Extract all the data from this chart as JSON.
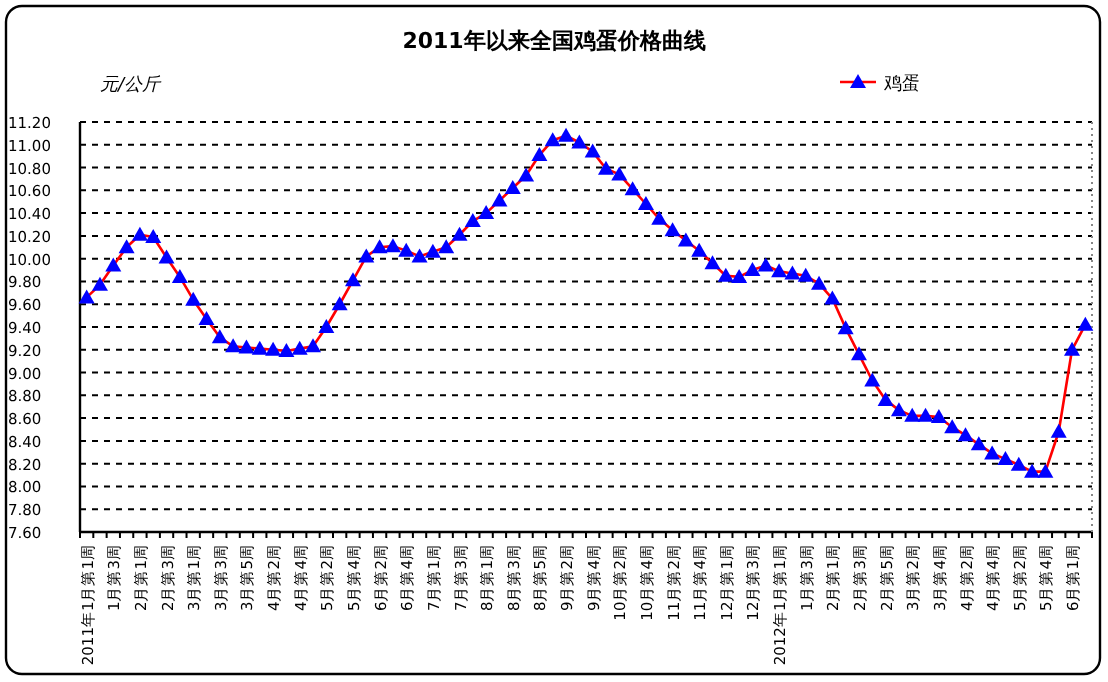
{
  "chart_data": {
    "type": "line",
    "title": "2011年以来全国鸡蛋价格曲线",
    "ylabel": "元/公斤",
    "categories": [
      "2011年1月第1周",
      null,
      "1月第3周",
      null,
      "2月第1周",
      null,
      "2月第3周",
      null,
      "3月第1周",
      null,
      "3月第3周",
      null,
      "3月第5周",
      null,
      "4月第2周",
      null,
      "4月第4周",
      null,
      "5月第2周",
      null,
      "5月第4周",
      null,
      "6月第2周",
      null,
      "6月第4周",
      null,
      "7月第1周",
      null,
      "7月第3周",
      null,
      "8月第1周",
      null,
      "8月第3周",
      null,
      "8月第5周",
      null,
      "9月第2周",
      null,
      "9月第4周",
      null,
      "10月第2周",
      null,
      "10月第4周",
      null,
      "11月第2周",
      null,
      "11月第4周",
      null,
      "12月第1周",
      null,
      "12月第3周",
      null,
      "2012年1月第1周",
      null,
      "1月第3周",
      null,
      "2月第1周",
      null,
      "2月第3周",
      null,
      "2月第5周",
      null,
      "3月第2周",
      null,
      "3月第4周",
      null,
      "4月第2周",
      null,
      "4月第4周",
      null,
      "5月第2周",
      null,
      "5月第4周",
      null,
      "6月第1周",
      null
    ],
    "series": [
      {
        "name": "鸡蛋",
        "color": "#ff0000",
        "colors": [
          "#0000ff",
          "#0000ff",
          "#0000ff",
          "#0000ff",
          "#0000ff",
          "#0000ff",
          "#0000ff",
          "#0000ff",
          "#0000ff",
          "#0000ff",
          "#0000ff",
          "#0000ff",
          "#0000ff",
          "#0000ff",
          "#0000ff",
          "#0000ff",
          "#0000ff",
          "#0000ff",
          "#0000ff",
          "#0000ff",
          "#0000ff",
          "#0000ff",
          "#0000ff",
          "#0000ff",
          "#0000ff",
          "#0000ff",
          "#0000ff",
          "#0000ff",
          "#0000ff",
          "#0000ff",
          "#0000ff",
          "#0000ff",
          "#0000ff",
          "#0000ff",
          "#0000ff",
          "#0000ff",
          "#0000ff",
          "#0000ff",
          "#0000ff",
          "#0000ff",
          "#0000ff",
          "#0000ff",
          "#0000ff",
          "#0000ff",
          "#0000ff",
          "#0000ff",
          "#0000ff",
          "#0000ff",
          "#0000ff",
          "#0000ff",
          "#0000ff",
          "#0000ff",
          "#0000ff",
          "#0000ff",
          "#0000ff",
          "#0000ff",
          "#0000ff",
          "#0000ff",
          "#0000ff",
          "#0000ff",
          "#0000ff",
          "#0000ff",
          "#0000ff",
          "#0000ff",
          "#0000ff",
          "#0000ff",
          "#0000ff",
          "#0000ff",
          "#0000ff",
          "#0000ff",
          "#0000ff",
          "#0000ff",
          "#0000ff",
          "#0000ff",
          "#0000ff",
          "#0000ff"
        ],
        "values": [
          9.66,
          9.77,
          9.94,
          10.1,
          10.21,
          10.19,
          10.01,
          9.84,
          9.64,
          9.47,
          9.31,
          9.23,
          9.22,
          9.21,
          9.2,
          9.19,
          9.21,
          9.23,
          9.4,
          9.6,
          9.81,
          10.02,
          10.1,
          10.11,
          10.07,
          10.02,
          10.06,
          10.1,
          10.21,
          10.33,
          10.4,
          10.51,
          10.62,
          10.73,
          10.91,
          11.04,
          11.08,
          11.02,
          10.94,
          10.79,
          10.74,
          10.61,
          10.48,
          10.35,
          10.25,
          10.16,
          10.07,
          9.96,
          9.85,
          9.84,
          9.9,
          9.94,
          9.89,
          9.87,
          9.85,
          9.78,
          9.65,
          9.39,
          9.16,
          8.93,
          8.76,
          8.67,
          8.62,
          8.62,
          8.61,
          8.52,
          8.45,
          8.37,
          8.29,
          8.24,
          8.19,
          8.13,
          8.13,
          8.48,
          9.2,
          9.42
        ]
      }
    ],
    "ylim": [
      7.6,
      11.2
    ],
    "yticks": [
      {
        "value": 7.6,
        "label": "7.60"
      },
      {
        "value": 7.8,
        "label": "7.80"
      },
      {
        "value": 8.0,
        "label": "8.00"
      },
      {
        "value": 8.2,
        "label": "8.20"
      },
      {
        "value": 8.4,
        "label": "8.40"
      },
      {
        "value": 8.6,
        "label": "8.60"
      },
      {
        "value": 8.8,
        "label": "8.80"
      },
      {
        "value": 9.0,
        "label": "9.00"
      },
      {
        "value": 9.2,
        "label": "9.20"
      },
      {
        "value": 9.4,
        "label": "9.40"
      },
      {
        "value": 9.6,
        "label": "9.60"
      },
      {
        "value": 9.8,
        "label": "9.80"
      },
      {
        "value": 10.0,
        "label": "10.00"
      },
      {
        "value": 10.2,
        "label": "10.20"
      },
      {
        "value": 10.4,
        "label": "10.40"
      },
      {
        "value": 10.6,
        "label": "10.60"
      },
      {
        "value": 10.8,
        "label": "10.80"
      },
      {
        "value": 11.0,
        "label": "11.00"
      },
      {
        "value": 11.2,
        "label": "11.20"
      }
    ],
    "grid": "y",
    "legend": "top right",
    "marker": "triangle",
    "line_style": "solid"
  }
}
